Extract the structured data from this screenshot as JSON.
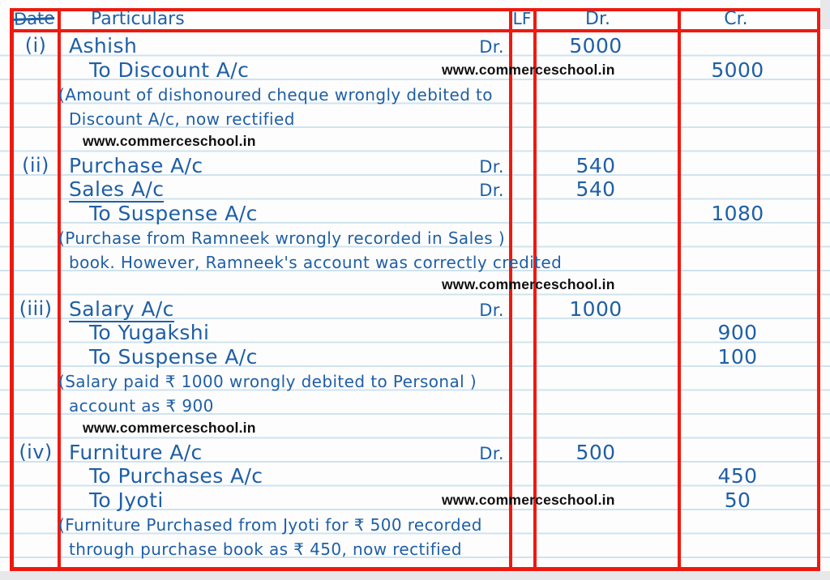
{
  "colors": {
    "ink": "#1f5fa6",
    "grid": "#ee1a10",
    "rule": "#cfe3ee",
    "paper": "#fdfdfd",
    "edge": "#e8e8eb",
    "watermark": "#101010"
  },
  "header": {
    "date": "Date",
    "particulars": "Particulars",
    "lf": "LF",
    "dr": "Dr.",
    "cr": "Cr."
  },
  "watermark_text": "www.commerceschool.in",
  "rows": [
    {
      "label": "(i)",
      "text": "Ashish",
      "marker": "Dr.",
      "dr": "5000"
    },
    {
      "text": "To Discount A/c",
      "indent": true,
      "watermark": "center",
      "cr": "5000"
    },
    {
      "narration": "(Amount of dishonoured cheque wrongly debited to"
    },
    {
      "narration": "Discount A/c, now rectified",
      "cont": true
    },
    {
      "watermark": "left"
    },
    {
      "label": "(ii)",
      "text": "Purchase A/c",
      "marker": "Dr.",
      "dr": "540"
    },
    {
      "text": "Sales A/c",
      "underline": true,
      "marker": "Dr.",
      "dr": "540"
    },
    {
      "text": "To Suspense A/c",
      "indent": true,
      "cr": "1080"
    },
    {
      "narration": "(Purchase from Ramneek wrongly recorded in Sales )"
    },
    {
      "narration": "book. However, Ramneek's account was correctly credited",
      "cont": true
    },
    {
      "watermark": "center"
    },
    {
      "label": "(iii)",
      "text": "Salary A/c",
      "underline": true,
      "marker": "Dr.",
      "dr": "1000"
    },
    {
      "text": "To Yugakshi",
      "indent": true,
      "cr": "900"
    },
    {
      "text": "To Suspense A/c",
      "indent": true,
      "cr": "100"
    },
    {
      "narration": "(Salary paid ₹ 1000 wrongly debited to Personal )"
    },
    {
      "narration": "account as ₹ 900",
      "cont": true
    },
    {
      "watermark": "left"
    },
    {
      "label": "(iv)",
      "text": "Furniture A/c",
      "marker": "Dr.",
      "dr": "500"
    },
    {
      "text": "To Purchases A/c",
      "indent": true,
      "cr": "450"
    },
    {
      "text": "To Jyoti",
      "indent": true,
      "watermark": "center",
      "cr": "50"
    },
    {
      "narration": "(Furniture Purchased from Jyoti for ₹ 500 recorded"
    },
    {
      "narration": "through purchase book as ₹ 450, now rectified",
      "cont": true
    }
  ]
}
